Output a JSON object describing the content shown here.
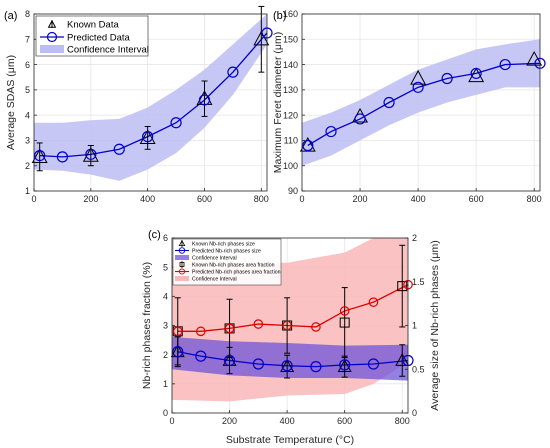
{
  "chart_data": [
    {
      "panel_label": "(a)",
      "type": "line",
      "xlabel": "",
      "ylabel": "Average SDAS (μm)",
      "xlim": [
        0,
        820
      ],
      "ylim": [
        1,
        8
      ],
      "xticks": [
        0,
        200,
        400,
        600,
        800
      ],
      "yticks": [
        1,
        2,
        3,
        4,
        5,
        6,
        7,
        8
      ],
      "grid": true,
      "legend_position": "top-left",
      "legend": [
        "Known Data",
        "Predicted Data",
        "Confidence Interval"
      ],
      "predicted": {
        "name": "Predicted Data",
        "x": [
          20,
          100,
          200,
          300,
          400,
          500,
          600,
          700,
          820
        ],
        "y": [
          2.4,
          2.35,
          2.45,
          2.65,
          3.15,
          3.7,
          4.6,
          5.7,
          7.25
        ]
      },
      "known": {
        "name": "Known Data",
        "x": [
          20,
          200,
          400,
          600,
          800
        ],
        "y": [
          2.35,
          2.4,
          3.1,
          4.65,
          7.0
        ],
        "err": [
          0.55,
          0.4,
          0.45,
          0.7,
          1.3
        ]
      },
      "confidence_interval": {
        "name": "Confidence Interval",
        "x": [
          0,
          100,
          200,
          300,
          400,
          500,
          600,
          700,
          820
        ],
        "lower": [
          1.85,
          1.8,
          1.65,
          1.4,
          1.85,
          2.5,
          3.5,
          4.8,
          6.8
        ],
        "upper": [
          3.7,
          3.7,
          3.8,
          3.85,
          4.3,
          5.0,
          5.8,
          6.8,
          8.0
        ]
      }
    },
    {
      "panel_label": "(b)",
      "type": "line",
      "xlabel": "",
      "ylabel": "Maximum Feret diameter (μm)",
      "xlim": [
        0,
        820
      ],
      "ylim": [
        90,
        160
      ],
      "xticks": [
        0,
        200,
        400,
        600,
        800
      ],
      "yticks": [
        90,
        100,
        110,
        120,
        130,
        140,
        150,
        160
      ],
      "grid": true,
      "predicted": {
        "name": "Predicted Data",
        "x": [
          20,
          100,
          200,
          300,
          400,
          500,
          600,
          700,
          820
        ],
        "y": [
          108,
          113.5,
          118.5,
          125,
          131,
          134.5,
          136.5,
          140,
          140.5
        ]
      },
      "known": {
        "name": "Known Data",
        "x": [
          20,
          200,
          400,
          600,
          800
        ],
        "y": [
          108,
          119.5,
          134.5,
          135.5,
          142
        ]
      },
      "confidence_interval": {
        "name": "Confidence Interval",
        "x": [
          0,
          100,
          200,
          300,
          400,
          500,
          600,
          700,
          820
        ],
        "lower": [
          100,
          104,
          110,
          116,
          121,
          125,
          128,
          131,
          131
        ],
        "upper": [
          117,
          121,
          126,
          132,
          138,
          142,
          146,
          148,
          150
        ]
      }
    },
    {
      "panel_label": "(c)",
      "type": "line",
      "xlabel": "Substrate Temperature (°C)",
      "ylabel": "Nb-rich phases fraction (%)",
      "ylabel_right": "Average size of Nb-rich phases (μm)",
      "xlim": [
        0,
        820
      ],
      "ylim": [
        0,
        6
      ],
      "ylim_right": [
        0,
        2
      ],
      "xticks": [
        0,
        200,
        400,
        600,
        800
      ],
      "yticks": [
        0,
        1,
        2,
        3,
        4,
        5,
        6
      ],
      "yticks_right": [
        0,
        0.5,
        1,
        1.5,
        2
      ],
      "grid": true,
      "legend_position": "top-left",
      "legend": [
        "Known Nb-rich phases size",
        "Predicted Nb-rich phases size",
        "Confidence Interval",
        "Known Nb-rich phases area fraction",
        "Predicted Nb-rich phases area fraction",
        "Confidence Interval"
      ],
      "size_predicted": {
        "name": "Predicted Nb-rich phases size",
        "x": [
          20,
          100,
          200,
          300,
          400,
          500,
          600,
          700,
          820
        ],
        "y": [
          0.7,
          0.65,
          0.6,
          0.56,
          0.54,
          0.53,
          0.55,
          0.56,
          0.6
        ]
      },
      "size_known": {
        "name": "Known Nb-rich phases size",
        "x": [
          20,
          200,
          400,
          600,
          800
        ],
        "y": [
          0.7,
          0.6,
          0.53,
          0.53,
          0.6
        ],
        "err": [
          0.17,
          0.15,
          0.13,
          0.12,
          0.18
        ]
      },
      "size_confidence_interval": {
        "name": "Confidence Interval",
        "x": [
          0,
          200,
          400,
          600,
          820
        ],
        "lower": [
          0.5,
          0.43,
          0.4,
          0.4,
          0.37
        ],
        "upper": [
          0.87,
          0.82,
          0.8,
          0.77,
          0.78
        ]
      },
      "fraction_predicted": {
        "name": "Predicted Nb-rich phases area fraction",
        "x": [
          20,
          100,
          200,
          300,
          400,
          500,
          600,
          700,
          820
        ],
        "y": [
          2.8,
          2.8,
          2.9,
          3.05,
          3.0,
          2.95,
          3.5,
          3.8,
          4.4
        ]
      },
      "fraction_known": {
        "name": "Known Nb-rich phases area fraction",
        "x": [
          20,
          200,
          400,
          600,
          800
        ],
        "y": [
          2.8,
          2.9,
          3.0,
          3.1,
          4.35
        ],
        "err": [
          1.15,
          1.0,
          0.95,
          1.2,
          1.4
        ]
      },
      "fraction_confidence_interval": {
        "name": "Confidence Interval",
        "x": [
          0,
          200,
          400,
          600,
          700,
          820
        ],
        "lower": [
          0.45,
          0.4,
          0.6,
          0.65,
          1.0,
          1.75
        ],
        "upper": [
          5.3,
          5.2,
          5.15,
          5.5,
          6.0,
          6.0
        ]
      }
    }
  ]
}
